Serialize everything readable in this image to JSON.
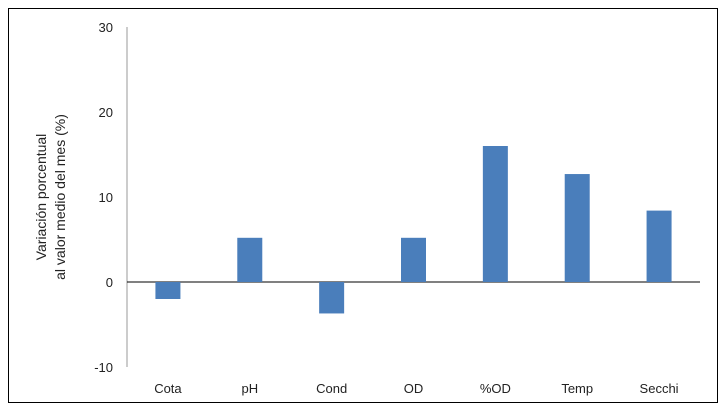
{
  "chart_data": {
    "type": "bar",
    "categories": [
      "Cota",
      "pH",
      "Cond",
      "OD",
      "%OD",
      "Temp",
      "Secchi"
    ],
    "values": [
      -2.0,
      5.2,
      -3.7,
      5.2,
      16.0,
      12.7,
      8.4
    ],
    "ylabel_line1": "Variación porcentual",
    "ylabel_line2": "al valor medio del mes (%)",
    "ylim": [
      -10,
      30
    ],
    "yticks": [
      -10,
      0,
      10,
      20,
      30
    ],
    "bar_color": "#4a7ebb",
    "grid": false
  }
}
